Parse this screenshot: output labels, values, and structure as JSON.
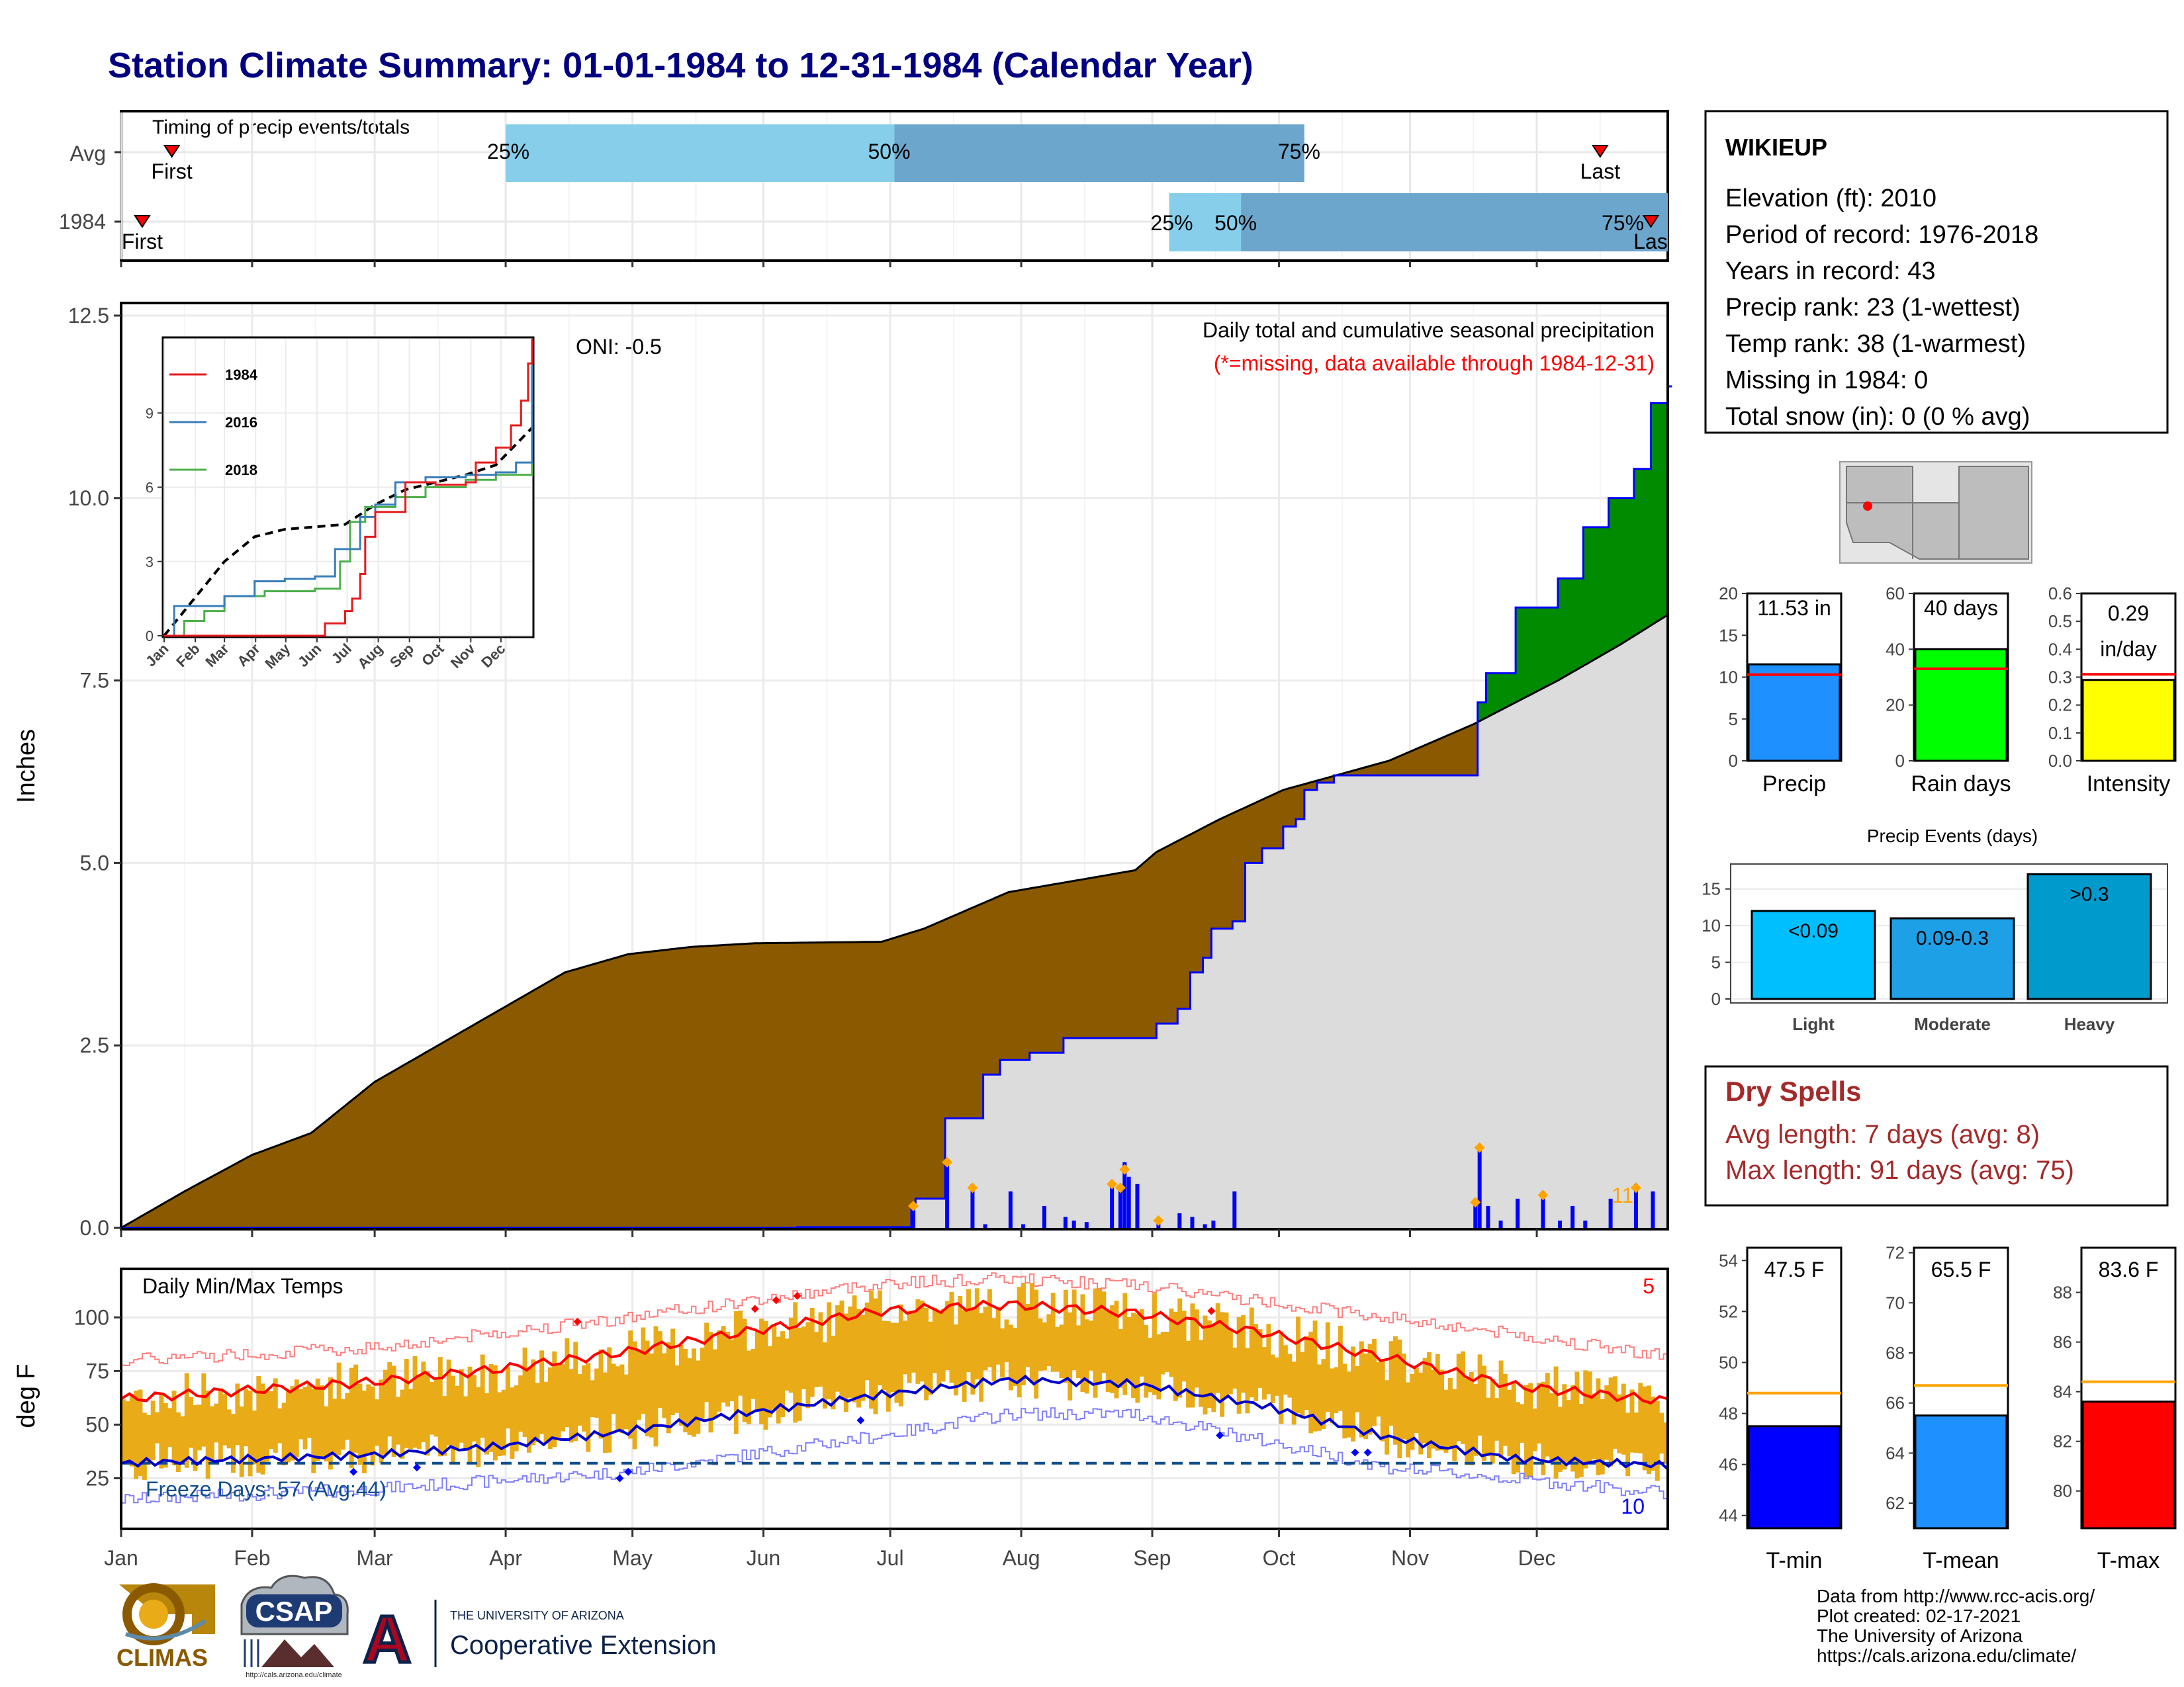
{
  "title": "Station Climate Summary: 01-01-1984 to 12-31-1984 (Calendar Year)",
  "colors": {
    "title": "#000080",
    "brown": "#8B5A00",
    "green": "#008B00",
    "gray_fill": "#DCDCDC",
    "bar_blue": "#0000FF",
    "dot_orange": "#FFA500",
    "red": "#FF0000",
    "gold": "#E9AB17",
    "dry_spell": "#A52A2A",
    "light_blue": "#87CEEB",
    "steel_blue": "#6CA6CD"
  },
  "months": [
    "Jan",
    "Feb",
    "Mar",
    "Apr",
    "May",
    "Jun",
    "Jul",
    "Aug",
    "Sep",
    "Oct",
    "Nov",
    "Dec"
  ],
  "timing": {
    "label": "Timing of precip events/totals",
    "rows": [
      {
        "name": "Avg",
        "first_label": "First",
        "last_label": "Last",
        "first_day": 12,
        "last_day": 350,
        "p25": 91,
        "p50": 183,
        "p75": 280,
        "l25": "25%",
        "l50": "50%",
        "l75": "75%"
      },
      {
        "name": "1984",
        "first_label": "First",
        "last_label": "Last",
        "first_day": 5,
        "last_day": 362,
        "p25": 248,
        "p50": 265,
        "p75": 368,
        "l25": "25%",
        "l50": "50%",
        "l75": "75%"
      }
    ]
  },
  "precip": {
    "ylabel": "Inches",
    "yticks": [
      "0.0",
      "2.5",
      "5.0",
      "7.5",
      "10.0",
      "12.5"
    ],
    "ymax": 12.5,
    "oni": "ONI: -0.5",
    "caption": "Daily total and cumulative seasonal precipitation",
    "subcaption": "(*=missing, data available through 1984-12-31)",
    "count_label": "11",
    "cumulative": [
      [
        0,
        0
      ],
      [
        15,
        0.5
      ],
      [
        31,
        1.0
      ],
      [
        45,
        1.3
      ],
      [
        60,
        2.0
      ],
      [
        75,
        2.5
      ],
      [
        90,
        3.0
      ],
      [
        105,
        3.5
      ],
      [
        120,
        3.75
      ],
      [
        135,
        3.85
      ],
      [
        150,
        3.9
      ],
      [
        180,
        3.92
      ],
      [
        190,
        4.1
      ],
      [
        210,
        4.6
      ],
      [
        240,
        4.9
      ],
      [
        245,
        5.15
      ],
      [
        260,
        5.6
      ],
      [
        275,
        6.0
      ],
      [
        300,
        6.4
      ],
      [
        320,
        6.9
      ],
      [
        340,
        7.5
      ],
      [
        355,
        8.0
      ],
      [
        366,
        8.4
      ]
    ],
    "year_cumulative": [
      [
        0,
        0
      ],
      [
        150,
        0
      ],
      [
        160,
        0.01
      ],
      [
        187,
        0.3
      ],
      [
        188,
        0.4
      ],
      [
        195,
        1.5
      ],
      [
        204,
        2.1
      ],
      [
        208,
        2.3
      ],
      [
        215,
        2.4
      ],
      [
        223,
        2.6
      ],
      [
        245,
        2.8
      ],
      [
        250,
        3.0
      ],
      [
        253,
        3.5
      ],
      [
        256,
        3.7
      ],
      [
        258,
        4.1
      ],
      [
        263,
        4.2
      ],
      [
        266,
        5.0
      ],
      [
        270,
        5.2
      ],
      [
        275,
        5.5
      ],
      [
        278,
        5.6
      ],
      [
        280,
        6.0
      ],
      [
        283,
        6.1
      ],
      [
        287,
        6.2
      ],
      [
        320,
        6.2
      ],
      [
        321,
        7.2
      ],
      [
        323,
        7.6
      ],
      [
        330,
        8.5
      ],
      [
        340,
        8.9
      ],
      [
        346,
        9.6
      ],
      [
        352,
        10.0
      ],
      [
        358,
        10.4
      ],
      [
        362,
        11.3
      ],
      [
        366,
        11.53
      ]
    ],
    "daily_bars": [
      [
        187,
        0.3
      ],
      [
        195,
        0.9
      ],
      [
        201,
        0.6
      ],
      [
        204,
        0.05
      ],
      [
        210,
        0.5
      ],
      [
        213,
        0.05
      ],
      [
        218,
        0.3
      ],
      [
        223,
        0.15
      ],
      [
        225,
        0.1
      ],
      [
        228,
        0.08
      ],
      [
        234,
        0.6
      ],
      [
        236,
        0.55
      ],
      [
        237,
        0.9
      ],
      [
        238,
        0.7
      ],
      [
        240,
        0.6
      ],
      [
        245,
        0.1
      ],
      [
        250,
        0.2
      ],
      [
        253,
        0.15
      ],
      [
        256,
        0.05
      ],
      [
        258,
        0.1
      ],
      [
        263,
        0.5
      ],
      [
        320,
        0.4
      ],
      [
        321,
        1.1
      ],
      [
        323,
        0.3
      ],
      [
        326,
        0.1
      ],
      [
        330,
        0.4
      ],
      [
        336,
        0.5
      ],
      [
        340,
        0.1
      ],
      [
        343,
        0.3
      ],
      [
        346,
        0.1
      ],
      [
        352,
        0.4
      ],
      [
        358,
        0.6
      ],
      [
        362,
        0.5
      ]
    ],
    "extreme_dots": [
      [
        187,
        0.3
      ],
      [
        195,
        0.9
      ],
      [
        201,
        0.55
      ],
      [
        234,
        0.6
      ],
      [
        236,
        0.55
      ],
      [
        237,
        0.8
      ],
      [
        245,
        0.1
      ],
      [
        320,
        0.35
      ],
      [
        321,
        1.1
      ],
      [
        336,
        0.45
      ],
      [
        358,
        0.55
      ]
    ]
  },
  "inset": {
    "yticks": [
      "0",
      "3",
      "6",
      "9"
    ],
    "ymax": 12,
    "legend": [
      {
        "name": "1984",
        "color": "#E41A1C"
      },
      {
        "name": "2016",
        "color": "#377EB8"
      },
      {
        "name": "2018",
        "color": "#4DAF4A"
      }
    ],
    "avg": [
      [
        0,
        0
      ],
      [
        30,
        1.5
      ],
      [
        60,
        3.0
      ],
      [
        90,
        4.0
      ],
      [
        120,
        4.3
      ],
      [
        150,
        4.4
      ],
      [
        180,
        4.5
      ],
      [
        210,
        5.3
      ],
      [
        240,
        5.9
      ],
      [
        270,
        6.2
      ],
      [
        300,
        6.5
      ],
      [
        330,
        6.9
      ],
      [
        366,
        8.4
      ]
    ],
    "series_1984": [
      [
        0,
        0
      ],
      [
        150,
        0
      ],
      [
        160,
        0.5
      ],
      [
        180,
        1.0
      ],
      [
        187,
        1.5
      ],
      [
        195,
        2.5
      ],
      [
        200,
        4.0
      ],
      [
        210,
        5.0
      ],
      [
        240,
        6.2
      ],
      [
        270,
        6.1
      ],
      [
        300,
        6.2
      ],
      [
        310,
        7.0
      ],
      [
        330,
        7.6
      ],
      [
        345,
        8.5
      ],
      [
        355,
        9.5
      ],
      [
        362,
        11.0
      ],
      [
        366,
        12.0
      ]
    ],
    "series_2016": [
      [
        0,
        0
      ],
      [
        10,
        1.2
      ],
      [
        60,
        1.6
      ],
      [
        90,
        2.2
      ],
      [
        120,
        2.3
      ],
      [
        150,
        2.4
      ],
      [
        170,
        3.5
      ],
      [
        195,
        4.8
      ],
      [
        210,
        5.3
      ],
      [
        230,
        6.2
      ],
      [
        260,
        6.4
      ],
      [
        300,
        6.5
      ],
      [
        330,
        6.6
      ],
      [
        350,
        7.0
      ],
      [
        366,
        11.5
      ]
    ],
    "series_2018": [
      [
        0,
        0
      ],
      [
        20,
        0.6
      ],
      [
        40,
        1.0
      ],
      [
        60,
        1.6
      ],
      [
        100,
        1.8
      ],
      [
        150,
        1.9
      ],
      [
        175,
        3.0
      ],
      [
        185,
        4.6
      ],
      [
        200,
        5.2
      ],
      [
        230,
        5.6
      ],
      [
        260,
        6.0
      ],
      [
        300,
        6.3
      ],
      [
        330,
        6.5
      ],
      [
        366,
        7.1
      ]
    ]
  },
  "station": {
    "name": "WIKIEUP",
    "lines": [
      "Elevation (ft): 2010",
      "Period of record: 1976-2018",
      "Years in record: 43",
      "Precip rank: 23 (1-wettest)",
      "Temp rank: 38 (1-warmest)",
      "Missing in 1984: 0",
      "Total snow (in): 0 (0 % avg)"
    ]
  },
  "mini_bars": [
    {
      "label": "Precip",
      "value": 11.53,
      "text": "11.53 in",
      "avg": 10.3,
      "ymax": 20,
      "ticks": [
        "0",
        "5",
        "10",
        "15",
        "20"
      ],
      "color": "#1E90FF"
    },
    {
      "label": "Rain days",
      "value": 40,
      "text": "40 days",
      "avg": 33,
      "ymax": 60,
      "ticks": [
        "0",
        "20",
        "40",
        "60"
      ],
      "color": "#00FF00"
    },
    {
      "label": "Intensity",
      "value": 0.29,
      "text": "0.29",
      "text2": "in/day",
      "avg": 0.31,
      "ymax": 0.6,
      "ticks": [
        "0.0",
        "0.1",
        "0.2",
        "0.3",
        "0.4",
        "0.5",
        "0.6"
      ],
      "color": "#FFFF00"
    }
  ],
  "events": {
    "title": "Precip Events (days)",
    "ymax": 17.5,
    "ticks": [
      "0",
      "5",
      "10",
      "15"
    ],
    "bars": [
      {
        "label": "Light",
        "text": "<0.09",
        "value": 12,
        "color": "#00BFFF"
      },
      {
        "label": "Moderate",
        "text": "0.09-0.3",
        "value": 11,
        "color": "#1EA0E6"
      },
      {
        "label": "Heavy",
        "text": ">0.3",
        "value": 17,
        "color": "#009ACD"
      }
    ]
  },
  "dry": {
    "title": "Dry Spells",
    "avg_line": "Avg length: 7 days (avg: 8)",
    "max_line": "Max length: 91 days (avg: 75)"
  },
  "temps": {
    "ylabel": "deg F",
    "title": "Daily Min/Max Temps",
    "freeze": "Freeze Days: 57 (Avg:44)",
    "count_hi": "5",
    "count_lo": "10",
    "yticks": [
      "25",
      "50",
      "75",
      "100"
    ],
    "ymin": 2,
    "ymax": 122,
    "avg_max": [
      [
        0,
        62
      ],
      [
        30,
        66
      ],
      [
        60,
        70
      ],
      [
        90,
        76
      ],
      [
        120,
        84
      ],
      [
        150,
        94
      ],
      [
        180,
        103
      ],
      [
        210,
        106
      ],
      [
        240,
        102
      ],
      [
        270,
        93
      ],
      [
        300,
        81
      ],
      [
        330,
        68
      ],
      [
        366,
        61
      ]
    ],
    "avg_min": [
      [
        0,
        32
      ],
      [
        30,
        34
      ],
      [
        60,
        36
      ],
      [
        90,
        40
      ],
      [
        120,
        47
      ],
      [
        150,
        56
      ],
      [
        180,
        64
      ],
      [
        210,
        71
      ],
      [
        240,
        69
      ],
      [
        270,
        59
      ],
      [
        300,
        44
      ],
      [
        330,
        34
      ],
      [
        366,
        31
      ]
    ],
    "rec_max": [
      [
        0,
        80
      ],
      [
        60,
        86
      ],
      [
        120,
        100
      ],
      [
        180,
        116
      ],
      [
        210,
        118
      ],
      [
        240,
        115
      ],
      [
        300,
        100
      ],
      [
        366,
        82
      ]
    ],
    "rec_min": [
      [
        0,
        15
      ],
      [
        60,
        20
      ],
      [
        120,
        28
      ],
      [
        180,
        45
      ],
      [
        210,
        55
      ],
      [
        240,
        55
      ],
      [
        300,
        30
      ],
      [
        366,
        18
      ]
    ]
  },
  "temp_bars": [
    {
      "label": "T-min",
      "value": 47.5,
      "text": "47.5 F",
      "avg": 48.8,
      "ymin": 43.5,
      "ymax": 54.5,
      "ticks": [
        44,
        46,
        48,
        50,
        52,
        54
      ],
      "color": "#0000FF"
    },
    {
      "label": "T-mean",
      "value": 65.5,
      "text": "65.5 F",
      "avg": 66.7,
      "ymin": 61,
      "ymax": 72.2,
      "ticks": [
        62,
        64,
        66,
        68,
        70,
        72
      ],
      "color": "#1E90FF"
    },
    {
      "label": "T-max",
      "value": 83.6,
      "text": "83.6 F",
      "avg": 84.4,
      "ymin": 78.5,
      "ymax": 89.8,
      "ticks": [
        80,
        82,
        84,
        86,
        88
      ],
      "color": "#FF0000"
    }
  ],
  "footer": {
    "lines": [
      "Data from http://www.rcc-acis.org/",
      "Plot created: 02-17-2021",
      "The University of Arizona",
      "https://cals.arizona.edu/climate/"
    ]
  },
  "logos": {
    "climas": "CLIMAS",
    "csap": "CSAP",
    "csap_url": "http://cals.arizona.edu/climate",
    "ua_small": "THE UNIVERSITY OF ARIZONA",
    "coop": "Cooperative Extension",
    "ua_letter": "A"
  }
}
